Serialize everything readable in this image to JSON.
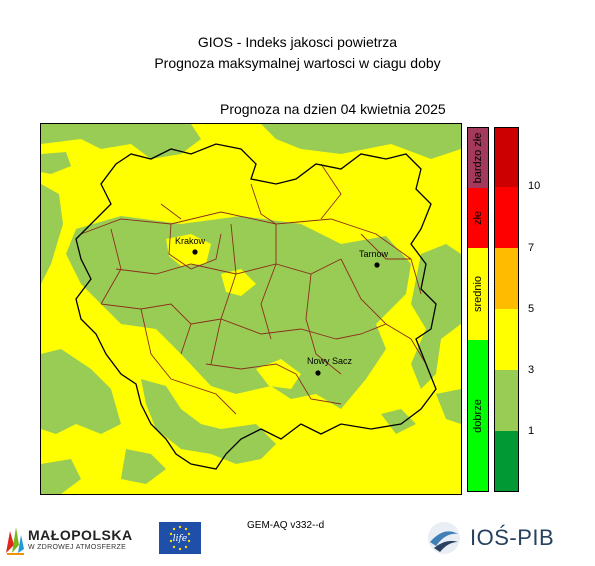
{
  "header": {
    "title": "GIOS - Indeks jakosci powietrza",
    "subtitle": "Prognoza maksymalnej wartosci w ciagu doby",
    "forecast_date": "Prognoza na dzien  04 kwietnia 2025"
  },
  "map": {
    "cities": [
      {
        "name": "Krakow"
      },
      {
        "name": "Tarnow"
      },
      {
        "name": "Nowy Sacz"
      }
    ],
    "colors": {
      "dobrze": "#99cc55",
      "srednio": "#ffff00",
      "border_outer": "#000000",
      "border_inner": "#8b2e1c"
    }
  },
  "legend": {
    "categories": [
      {
        "label": "bardzo złe",
        "color": "#a33a5c"
      },
      {
        "label": "złe",
        "color": "#ff0000"
      },
      {
        "label": "srednio",
        "color": "#ffff00"
      },
      {
        "label": "dobrze",
        "color": "#00ff00"
      }
    ],
    "scale_colors": [
      "#009933",
      "#99cc55",
      "#ffff00",
      "#ffbb00",
      "#ff0000",
      "#cc0000"
    ],
    "ticks": [
      "1",
      "3",
      "5",
      "7",
      "10"
    ]
  },
  "footer": {
    "model": "GEM-AQ v332--d",
    "malopolska_name": "MAŁOPOLSKA",
    "malopolska_sub": "W ZDROWEJ ATMOSFERZE",
    "eu_logo_text": "life",
    "ios_name": "IOŚ-PIB"
  }
}
